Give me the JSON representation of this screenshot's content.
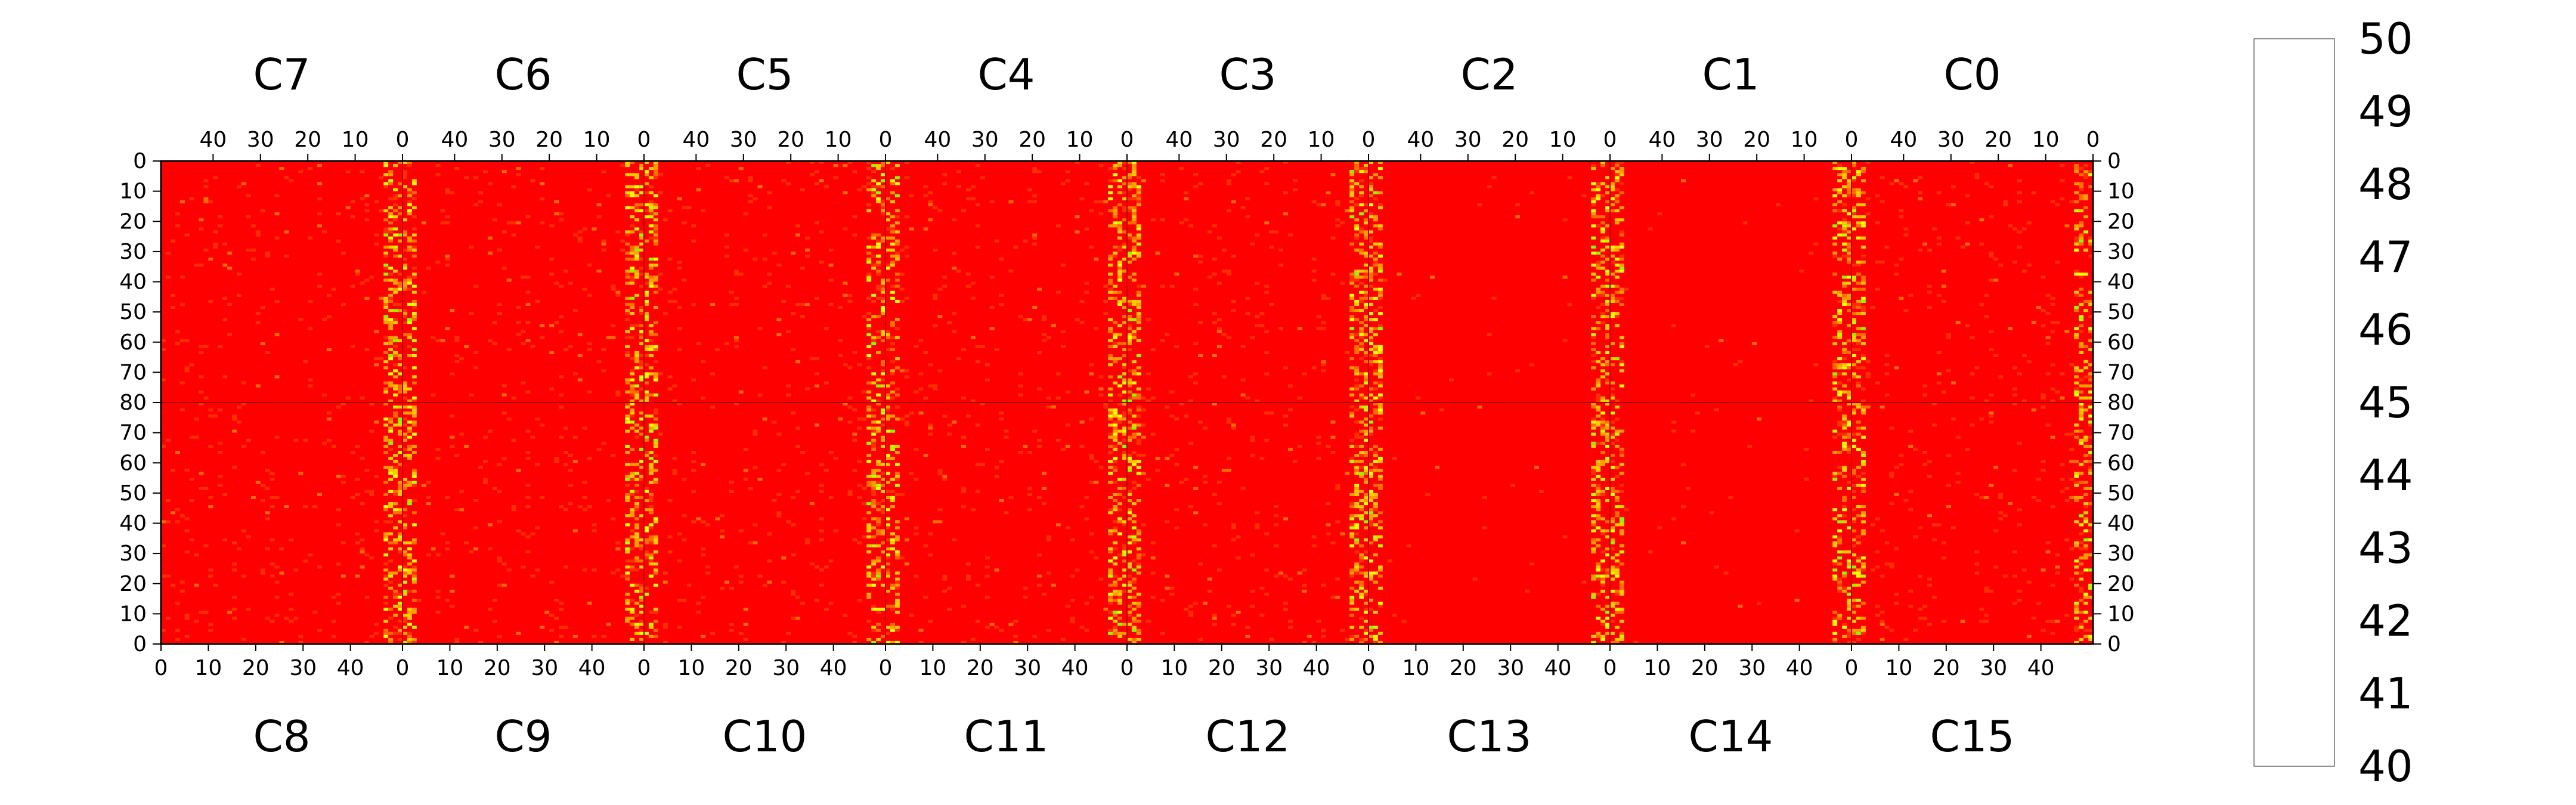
{
  "chart_data": {
    "type": "heatmap",
    "top_chips": [
      "C7",
      "C6",
      "C5",
      "C4",
      "C3",
      "C2",
      "C1",
      "C0"
    ],
    "bottom_chips": [
      "C8",
      "C9",
      "C10",
      "C11",
      "C12",
      "C13",
      "C14",
      "C15"
    ],
    "top_x_ticks": [
      "40",
      "30",
      "20",
      "10",
      "0"
    ],
    "bottom_x_ticks": [
      "0",
      "10",
      "20",
      "30",
      "40"
    ],
    "top_half_y_ticks": [
      "0",
      "10",
      "20",
      "30",
      "40",
      "50",
      "60",
      "70",
      "80"
    ],
    "bottom_half_y_ticks": [
      "70",
      "60",
      "50",
      "40",
      "30",
      "20",
      "10",
      "0"
    ],
    "x_range_per_chip": [
      0,
      51
    ],
    "y_range_per_half": [
      0,
      80
    ],
    "z_range": [
      40,
      50
    ],
    "colorbar_ticks": [
      "40",
      "41",
      "42",
      "43",
      "44",
      "45",
      "46",
      "47",
      "48",
      "49",
      "50"
    ],
    "colorbar_colors": [
      "#7a00ff",
      "#3a00ff",
      "#0010ff",
      "#0050ff",
      "#0090ff",
      "#00c0ff",
      "#00ffff",
      "#00ffc0",
      "#00ff90",
      "#00ff60",
      "#00ff30",
      "#00ff00",
      "#40ff00",
      "#80ff00",
      "#b0ff00",
      "#e0ff00",
      "#ffff00",
      "#ffcc00",
      "#ffa000",
      "#ff7000",
      "#ff3000",
      "#ff0000"
    ],
    "description_values": {
      "dominant_value": 50,
      "hot_column_bands_value": 47.5
    }
  }
}
